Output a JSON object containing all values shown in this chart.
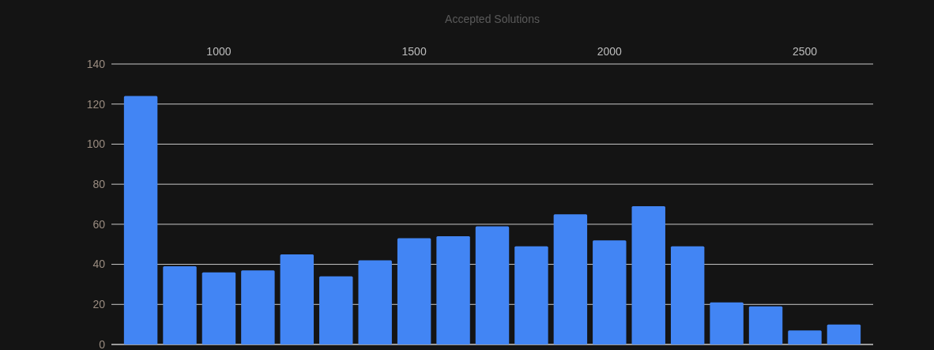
{
  "chart_data": {
    "type": "histogram",
    "title": "Accepted Solutions",
    "bins": [
      750,
      850,
      950,
      1050,
      1150,
      1250,
      1350,
      1450,
      1550,
      1650,
      1750,
      1850,
      1950,
      2050,
      2150,
      2250,
      2350,
      2450,
      2550,
      2650
    ],
    "values": [
      124,
      39,
      36,
      37,
      45,
      34,
      42,
      53,
      54,
      59,
      49,
      65,
      52,
      69,
      49,
      21,
      19,
      7,
      10
    ],
    "color": "#4285f4",
    "xlim": [
      725,
      2675
    ],
    "xticks": [
      1000,
      1500,
      2000,
      2500
    ],
    "ylim": [
      0,
      140
    ],
    "yticks": [
      0,
      20,
      40,
      60,
      80,
      100,
      120,
      140
    ],
    "grid": "y"
  }
}
